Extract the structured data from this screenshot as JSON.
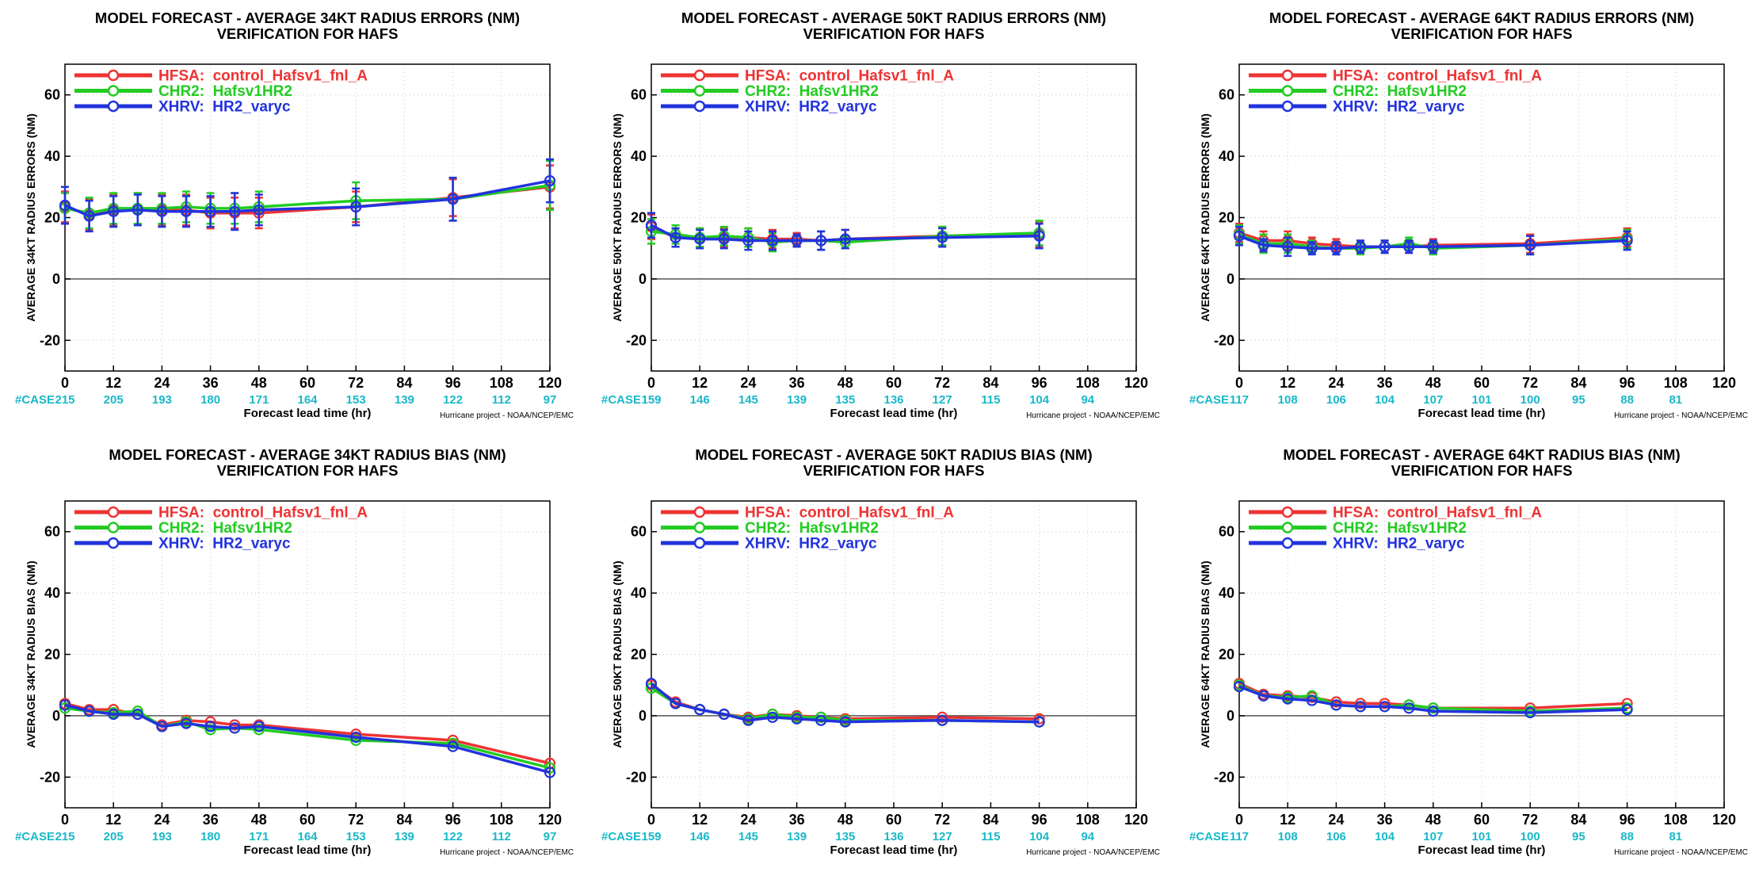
{
  "common": {
    "xlabel": "Forecast lead time (hr)",
    "credit": "Hurricane project - NOAA/NCEP/EMC",
    "case_label": "#CASE",
    "xticks": [
      0,
      12,
      24,
      36,
      48,
      60,
      72,
      84,
      96,
      108,
      120
    ],
    "yticks": [
      -20,
      0,
      20,
      40,
      60
    ],
    "case_hours": [
      0,
      12,
      24,
      36,
      48,
      60,
      72,
      84,
      96,
      108,
      120
    ],
    "colors": {
      "HFSA": "#ee3333",
      "CHR2": "#22cc22",
      "XHRV": "#2233dd",
      "case": "#19b8c8"
    }
  },
  "chart_data": [
    {
      "type": "line",
      "title": "MODEL FORECAST - AVERAGE 34KT RADIUS ERRORS (NM)",
      "subtitle": "VERIFICATION FOR HAFS",
      "ylabel": "AVERAGE 34KT RADIUS ERRORS (NM)",
      "xlim": [
        0,
        120
      ],
      "ylim": [
        -30,
        70
      ],
      "cases": [
        "215",
        "205",
        "193",
        "180",
        "171",
        "164",
        "153",
        "139",
        "122",
        "112",
        "97"
      ],
      "x": [
        0,
        6,
        12,
        18,
        24,
        30,
        36,
        42,
        48,
        72,
        96,
        120
      ],
      "series": [
        {
          "name": "HFSA:  control_Hafsv1_fnl_A",
          "values": [
            23.5,
            21.0,
            22.5,
            23.0,
            22.5,
            22.5,
            21.5,
            21.5,
            21.5,
            23.5,
            26.5,
            30.0
          ],
          "errbar": [
            5,
            5,
            5,
            5,
            5,
            5,
            5,
            5,
            5,
            5,
            6,
            7
          ]
        },
        {
          "name": "CHR2:  Hafsv1HR2",
          "values": [
            23.0,
            21.5,
            23.0,
            23.0,
            23.0,
            23.5,
            23.0,
            23.0,
            23.5,
            25.5,
            26.0,
            30.5
          ],
          "errbar": [
            5,
            5,
            5,
            5,
            5,
            5,
            5,
            5,
            5,
            6,
            7,
            8
          ]
        },
        {
          "name": "XHRV:  HR2_varyc",
          "values": [
            24.0,
            20.5,
            22.0,
            22.5,
            22.0,
            22.0,
            22.0,
            22.0,
            22.5,
            23.5,
            26.0,
            32.0
          ],
          "errbar": [
            6,
            5,
            5,
            5,
            5,
            5,
            5,
            6,
            5,
            6,
            7,
            7
          ]
        }
      ]
    },
    {
      "type": "line",
      "title": "MODEL FORECAST - AVERAGE 50KT RADIUS ERRORS (NM)",
      "subtitle": "VERIFICATION FOR HAFS",
      "ylabel": "AVERAGE 50KT RADIUS ERRORS (NM)",
      "xlim": [
        0,
        120
      ],
      "ylim": [
        -30,
        70
      ],
      "cases": [
        "159",
        "146",
        "145",
        "139",
        "135",
        "136",
        "127",
        "115",
        "104",
        "94",
        ""
      ],
      "x": [
        0,
        6,
        12,
        18,
        24,
        30,
        36,
        42,
        48,
        72,
        96
      ],
      "series": [
        {
          "name": "HFSA:  control_Hafsv1_fnl_A",
          "values": [
            17.0,
            13.5,
            13.5,
            13.5,
            13.5,
            13.0,
            13.0,
            12.5,
            13.0,
            14.0,
            14.5
          ],
          "errbar": [
            4,
            3,
            3,
            3,
            3,
            3,
            2,
            3,
            3,
            3,
            4
          ]
        },
        {
          "name": "CHR2:  Hafsv1HR2",
          "values": [
            15.5,
            14.5,
            13.5,
            14.0,
            13.5,
            12.0,
            12.5,
            12.5,
            12.0,
            14.0,
            15.0
          ],
          "errbar": [
            4,
            3,
            3,
            3,
            3,
            3,
            2,
            3,
            2,
            3,
            4
          ]
        },
        {
          "name": "XHRV:  HR2_varyc",
          "values": [
            17.5,
            13.5,
            13.0,
            13.0,
            12.5,
            12.5,
            12.5,
            12.5,
            13.0,
            13.5,
            14.0
          ],
          "errbar": [
            4,
            3,
            3,
            3,
            3,
            3,
            2,
            3,
            3,
            3,
            4
          ]
        }
      ]
    },
    {
      "type": "line",
      "title": "MODEL FORECAST - AVERAGE 64KT RADIUS ERRORS (NM)",
      "subtitle": "VERIFICATION FOR HAFS",
      "ylabel": "AVERAGE 64KT RADIUS ERRORS (NM)",
      "xlim": [
        0,
        120
      ],
      "ylim": [
        -30,
        70
      ],
      "cases": [
        "117",
        "108",
        "106",
        "104",
        "107",
        "101",
        "100",
        "95",
        "88",
        "81",
        ""
      ],
      "x": [
        0,
        6,
        12,
        18,
        24,
        30,
        36,
        42,
        48,
        72,
        96
      ],
      "series": [
        {
          "name": "HFSA:  control_Hafsv1_fnl_A",
          "values": [
            15.0,
            12.5,
            12.5,
            11.5,
            11.0,
            10.5,
            10.5,
            10.5,
            11.0,
            11.5,
            13.5
          ],
          "errbar": [
            3,
            3,
            3,
            2,
            2,
            2,
            2,
            2,
            2,
            3,
            3
          ]
        },
        {
          "name": "CHR2:  Hafsv1HR2",
          "values": [
            14.5,
            11.5,
            11.5,
            10.5,
            10.0,
            10.0,
            10.5,
            11.5,
            10.0,
            11.0,
            13.0
          ],
          "errbar": [
            3,
            3,
            3,
            2,
            2,
            2,
            2,
            2,
            2,
            3,
            3
          ]
        },
        {
          "name": "XHRV:  HR2_varyc",
          "values": [
            14.0,
            11.0,
            10.5,
            10.0,
            10.0,
            10.5,
            10.5,
            10.5,
            10.5,
            11.0,
            12.5
          ],
          "errbar": [
            3,
            2,
            3,
            2,
            2,
            2,
            2,
            2,
            2,
            3,
            3
          ]
        }
      ]
    },
    {
      "type": "line",
      "title": "MODEL FORECAST - AVERAGE 34KT RADIUS BIAS (NM)",
      "subtitle": "VERIFICATION FOR HAFS",
      "ylabel": "AVERAGE 34KT RADIUS BIAS (NM)",
      "xlim": [
        0,
        120
      ],
      "ylim": [
        -30,
        70
      ],
      "cases": [
        "215",
        "205",
        "193",
        "180",
        "171",
        "164",
        "153",
        "139",
        "122",
        "112",
        "97"
      ],
      "x": [
        0,
        6,
        12,
        18,
        24,
        30,
        36,
        42,
        48,
        72,
        96,
        120
      ],
      "series": [
        {
          "name": "HFSA:  control_Hafsv1_fnl_A",
          "values": [
            4.0,
            2.0,
            2.0,
            0.5,
            -3.0,
            -1.5,
            -2.0,
            -3.0,
            -3.0,
            -6.0,
            -8.0,
            -15.5
          ]
        },
        {
          "name": "CHR2:  Hafsv1HR2",
          "values": [
            2.5,
            1.5,
            1.0,
            1.5,
            -3.5,
            -2.0,
            -4.5,
            -4.0,
            -4.5,
            -8.0,
            -9.0,
            -17.0
          ]
        },
        {
          "name": "XHRV:  HR2_varyc",
          "values": [
            3.5,
            1.5,
            0.5,
            0.5,
            -3.5,
            -2.5,
            -3.5,
            -4.0,
            -3.5,
            -7.0,
            -10.0,
            -18.5
          ]
        }
      ]
    },
    {
      "type": "line",
      "title": "MODEL FORECAST - AVERAGE 50KT RADIUS BIAS (NM)",
      "subtitle": "VERIFICATION FOR HAFS",
      "ylabel": "AVERAGE 50KT RADIUS BIAS (NM)",
      "xlim": [
        0,
        120
      ],
      "ylim": [
        -30,
        70
      ],
      "cases": [
        "159",
        "146",
        "145",
        "139",
        "135",
        "136",
        "127",
        "115",
        "104",
        "94",
        ""
      ],
      "x": [
        0,
        6,
        12,
        18,
        24,
        30,
        36,
        42,
        48,
        72,
        96
      ],
      "series": [
        {
          "name": "HFSA:  control_Hafsv1_fnl_A",
          "values": [
            10.0,
            4.5,
            2.0,
            0.5,
            -0.5,
            0.5,
            0.0,
            -0.5,
            -1.0,
            -0.5,
            -1.0
          ]
        },
        {
          "name": "CHR2:  Hafsv1HR2",
          "values": [
            9.0,
            4.0,
            2.0,
            0.5,
            -1.0,
            0.5,
            -0.5,
            -0.5,
            -1.5,
            -1.5,
            -2.0
          ]
        },
        {
          "name": "XHRV:  HR2_varyc",
          "values": [
            10.5,
            4.0,
            2.0,
            0.5,
            -1.5,
            -0.5,
            -1.0,
            -1.5,
            -2.0,
            -1.5,
            -2.0
          ]
        }
      ]
    },
    {
      "type": "line",
      "title": "MODEL FORECAST - AVERAGE 64KT RADIUS BIAS (NM)",
      "subtitle": "VERIFICATION FOR HAFS",
      "ylabel": "AVERAGE 64KT RADIUS BIAS (NM)",
      "xlim": [
        0,
        120
      ],
      "ylim": [
        -30,
        70
      ],
      "cases": [
        "117",
        "108",
        "106",
        "104",
        "107",
        "101",
        "100",
        "95",
        "88",
        "81",
        ""
      ],
      "x": [
        0,
        6,
        12,
        18,
        24,
        30,
        36,
        42,
        48,
        72,
        96
      ],
      "series": [
        {
          "name": "HFSA:  control_Hafsv1_fnl_A",
          "values": [
            10.5,
            7.0,
            6.5,
            6.0,
            4.5,
            4.0,
            4.0,
            3.5,
            2.5,
            2.5,
            4.0
          ]
        },
        {
          "name": "CHR2:  Hafsv1HR2",
          "values": [
            10.0,
            6.5,
            6.0,
            6.5,
            3.5,
            3.0,
            3.0,
            3.5,
            2.5,
            1.5,
            2.5
          ]
        },
        {
          "name": "XHRV:  HR2_varyc",
          "values": [
            9.5,
            6.5,
            5.5,
            5.0,
            3.5,
            3.0,
            3.0,
            2.5,
            1.5,
            1.0,
            2.0
          ]
        }
      ]
    }
  ]
}
